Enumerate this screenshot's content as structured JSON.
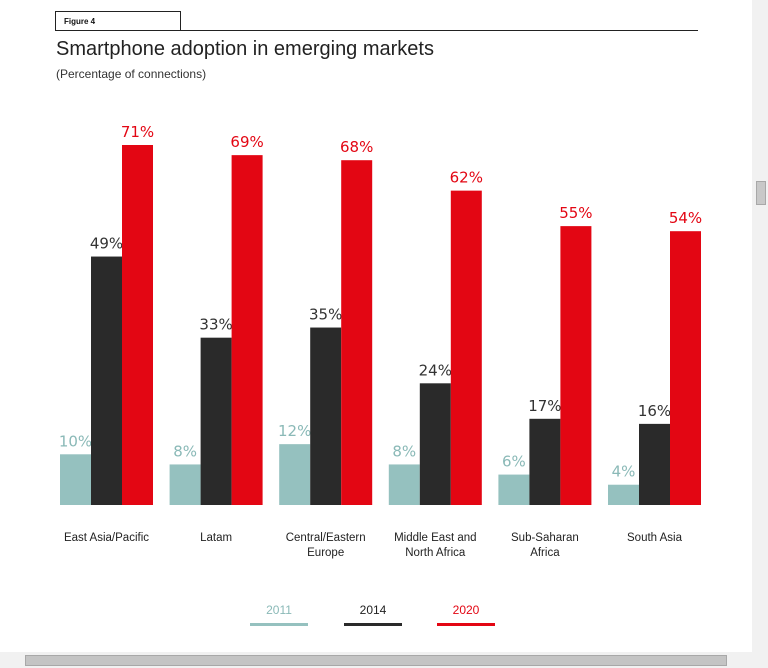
{
  "figure_label": "Figure 4",
  "chart_data": {
    "type": "bar",
    "title": "Smartphone adoption in emerging markets",
    "subtitle": "(Percentage of connections)",
    "categories": [
      [
        "East Asia/Pacific"
      ],
      [
        "Latam"
      ],
      [
        "Central/Eastern",
        "Europe"
      ],
      [
        "Middle East and",
        "North Africa"
      ],
      [
        "Sub-Saharan",
        "Africa"
      ],
      [
        "South Asia"
      ]
    ],
    "series": [
      {
        "name": "2011",
        "color": "#95c1bf",
        "values": [
          10,
          8,
          12,
          8,
          6,
          4
        ]
      },
      {
        "name": "2014",
        "color": "#2a2a2a",
        "values": [
          49,
          33,
          35,
          24,
          17,
          16
        ]
      },
      {
        "name": "2020",
        "color": "#e30613",
        "values": [
          71,
          69,
          68,
          62,
          55,
          54
        ]
      }
    ],
    "value_suffix": "%",
    "ylim": [
      0,
      71
    ],
    "legend_position": "bottom-center",
    "grid": false
  }
}
